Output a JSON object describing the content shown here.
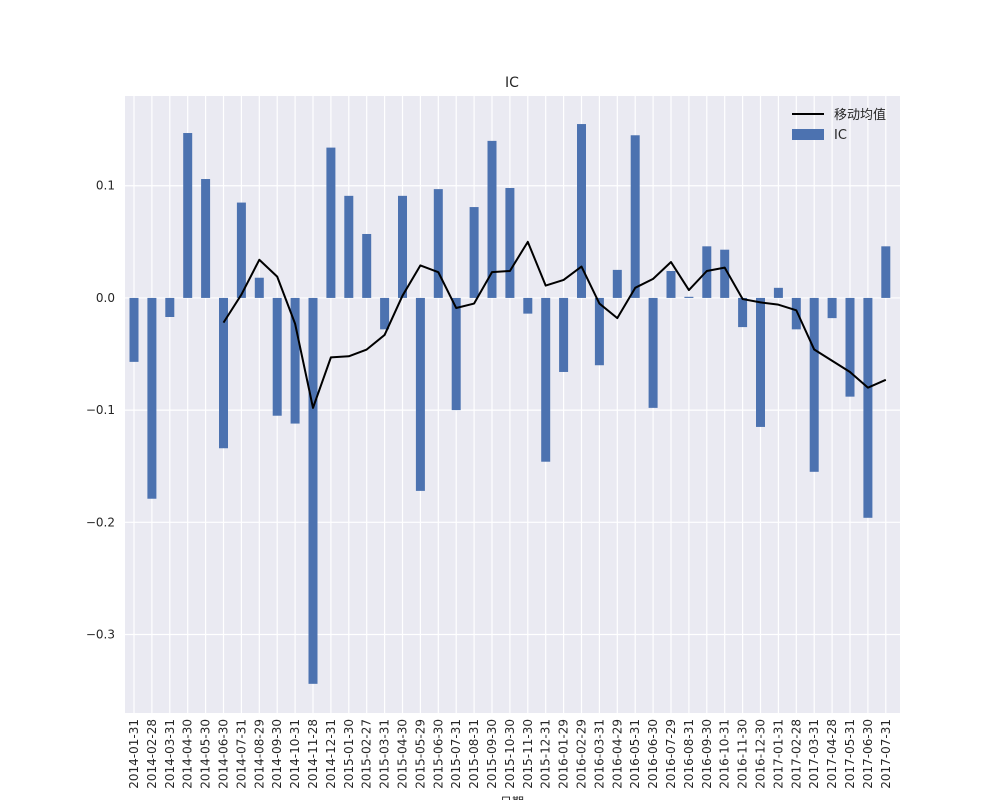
{
  "chart_data": {
    "type": "bar",
    "title": "IC",
    "xlabel": "日期",
    "ylabel": "",
    "ylim": [
      -0.37,
      0.18
    ],
    "yticks": [
      0.1,
      0.0,
      -0.1,
      -0.2,
      -0.3
    ],
    "ytick_labels": [
      "0.1",
      "0.0",
      "−0.1",
      "−0.2",
      "−0.3"
    ],
    "grid": true,
    "legend_position": "top-right",
    "categories": [
      "2014-01-31",
      "2014-02-28",
      "2014-03-31",
      "2014-04-30",
      "2014-05-30",
      "2014-06-30",
      "2014-07-31",
      "2014-08-29",
      "2014-09-30",
      "2014-10-31",
      "2014-11-28",
      "2014-12-31",
      "2015-01-30",
      "2015-02-27",
      "2015-03-31",
      "2015-04-30",
      "2015-05-29",
      "2015-06-30",
      "2015-07-31",
      "2015-08-31",
      "2015-09-30",
      "2015-10-30",
      "2015-11-30",
      "2015-12-31",
      "2016-01-29",
      "2016-02-29",
      "2016-03-31",
      "2016-04-29",
      "2016-05-31",
      "2016-06-30",
      "2016-07-29",
      "2016-08-31",
      "2016-09-30",
      "2016-10-31",
      "2016-11-30",
      "2016-12-30",
      "2017-01-31",
      "2017-02-28",
      "2017-03-31",
      "2017-04-28",
      "2017-05-31",
      "2017-06-30",
      "2017-07-31"
    ],
    "series": [
      {
        "name": "IC",
        "kind": "bar",
        "color": "#4c72b0",
        "values": [
          -0.057,
          -0.179,
          -0.017,
          0.147,
          0.106,
          -0.134,
          0.085,
          0.018,
          -0.105,
          -0.112,
          -0.344,
          0.134,
          0.091,
          0.057,
          -0.028,
          0.091,
          -0.172,
          0.097,
          -0.1,
          0.081,
          0.14,
          0.098,
          -0.014,
          -0.146,
          -0.066,
          0.155,
          -0.06,
          0.025,
          0.145,
          -0.098,
          0.024,
          0.001,
          0.046,
          0.043,
          -0.026,
          -0.115,
          0.009,
          -0.028,
          -0.155,
          -0.018,
          -0.088,
          -0.196,
          0.046
        ]
      },
      {
        "name": "移动均值",
        "kind": "line",
        "color": "#000000",
        "values": [
          null,
          null,
          null,
          null,
          null,
          -0.022,
          0.003,
          0.034,
          0.019,
          -0.023,
          -0.098,
          -0.053,
          -0.052,
          -0.046,
          -0.033,
          0.002,
          0.029,
          0.023,
          -0.009,
          -0.005,
          0.023,
          0.024,
          0.05,
          0.011,
          0.016,
          0.028,
          -0.005,
          -0.018,
          0.009,
          0.017,
          0.032,
          0.007,
          0.024,
          0.027,
          -0.001,
          -0.004,
          -0.006,
          -0.011,
          -0.046,
          -0.056,
          -0.066,
          -0.08,
          -0.073
        ]
      }
    ]
  }
}
